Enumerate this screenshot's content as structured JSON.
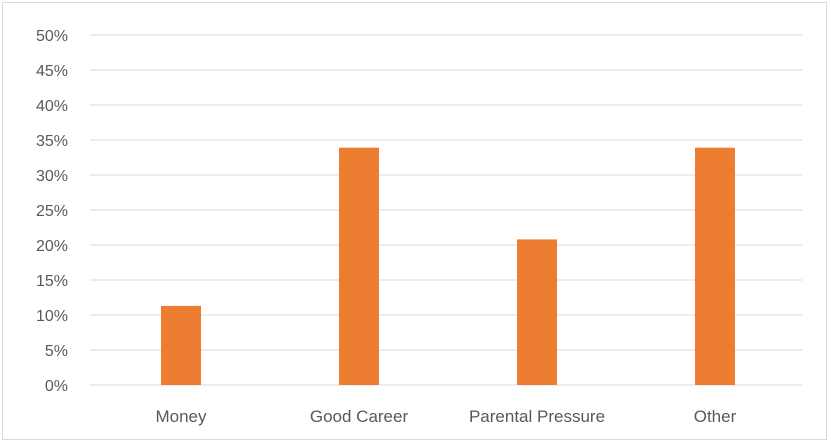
{
  "chart_data": {
    "type": "bar",
    "categories": [
      "Money",
      "Good Career",
      "Parental Pressure",
      "Other"
    ],
    "values": [
      11.3,
      33.9,
      20.8,
      33.9
    ],
    "title": "",
    "xlabel": "",
    "ylabel": "",
    "ylim": [
      0,
      50
    ],
    "yticks": [
      "0%",
      "5%",
      "10%",
      "15%",
      "20%",
      "25%",
      "30%",
      "35%",
      "40%",
      "45%",
      "50%"
    ],
    "grid": true,
    "legend": "none",
    "bar_color": "#ed7d31",
    "gridline_color": "#d9d9d9"
  }
}
